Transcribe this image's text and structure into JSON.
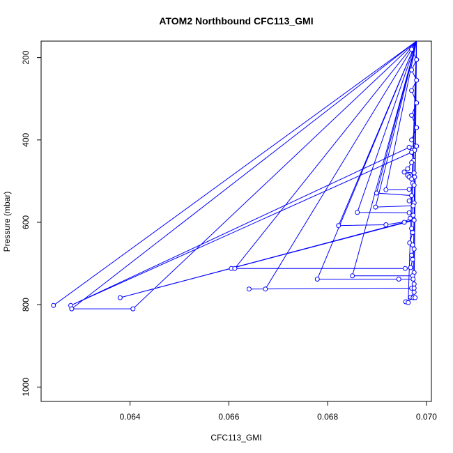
{
  "chart_data": {
    "type": "line",
    "title": "ATOM2 Northbound CFC113_GMI",
    "xlabel": "CFC113_GMI",
    "ylabel": "Pressure (mbar)",
    "xlim": [
      0.0622,
      0.0701
    ],
    "ylim": [
      1035,
      160
    ],
    "y_reversed": true,
    "x_ticks": [
      0.064,
      0.066,
      0.068,
      0.07
    ],
    "x_tick_labels": [
      "0.064",
      "0.066",
      "0.068",
      "0.070"
    ],
    "y_ticks": [
      200,
      400,
      600,
      800,
      1000
    ],
    "y_tick_labels": [
      "200",
      "400",
      "600",
      "800",
      "1000"
    ],
    "grid": false,
    "color": "#0000ff",
    "marker": "open-circle",
    "series": [
      {
        "values": [
          {
            "x": 0.0698,
            "y": 160
          },
          {
            "x": 0.0697,
            "y": 180
          },
          {
            "x": 0.0698,
            "y": 205
          },
          {
            "x": 0.0697,
            "y": 230
          },
          {
            "x": 0.0698,
            "y": 255
          },
          {
            "x": 0.0697,
            "y": 280
          },
          {
            "x": 0.0698,
            "y": 310
          },
          {
            "x": 0.0697,
            "y": 340
          },
          {
            "x": 0.0698,
            "y": 370
          },
          {
            "x": 0.0697,
            "y": 400
          },
          {
            "x": 0.0698,
            "y": 415
          },
          {
            "x": 0.0697,
            "y": 420
          },
          {
            "x": 0.06972,
            "y": 425
          },
          {
            "x": 0.06976,
            "y": 425
          },
          {
            "x": 0.06965,
            "y": 418
          },
          {
            "x": 0.0628,
            "y": 802
          },
          {
            "x": 0.0697,
            "y": 430
          },
          {
            "x": 0.06974,
            "y": 450
          },
          {
            "x": 0.0697,
            "y": 455
          },
          {
            "x": 0.06962,
            "y": 470
          },
          {
            "x": 0.06955,
            "y": 478
          },
          {
            "x": 0.06975,
            "y": 480
          },
          {
            "x": 0.06962,
            "y": 486
          },
          {
            "x": 0.06965,
            "y": 490
          },
          {
            "x": 0.06976,
            "y": 490
          },
          {
            "x": 0.0697,
            "y": 495
          },
          {
            "x": 0.06972,
            "y": 505
          },
          {
            "x": 0.06975,
            "y": 510
          },
          {
            "x": 0.06965,
            "y": 520
          },
          {
            "x": 0.06918,
            "y": 521
          },
          {
            "x": 0.0698,
            "y": 160
          },
          {
            "x": 0.06899,
            "y": 529
          },
          {
            "x": 0.0697,
            "y": 535
          },
          {
            "x": 0.06965,
            "y": 548
          },
          {
            "x": 0.06975,
            "y": 553
          },
          {
            "x": 0.06973,
            "y": 560
          },
          {
            "x": 0.06897,
            "y": 563
          },
          {
            "x": 0.0698,
            "y": 160
          },
          {
            "x": 0.0686,
            "y": 576
          },
          {
            "x": 0.06965,
            "y": 577
          },
          {
            "x": 0.06973,
            "y": 583
          },
          {
            "x": 0.06967,
            "y": 590
          },
          {
            "x": 0.06955,
            "y": 600
          },
          {
            "x": 0.0638,
            "y": 783
          },
          {
            "x": 0.06975,
            "y": 595
          },
          {
            "x": 0.06918,
            "y": 606
          },
          {
            "x": 0.06822,
            "y": 608
          },
          {
            "x": 0.0698,
            "y": 160
          },
          {
            "x": 0.0697,
            "y": 615
          },
          {
            "x": 0.06972,
            "y": 625
          },
          {
            "x": 0.06966,
            "y": 650
          },
          {
            "x": 0.06972,
            "y": 655
          },
          {
            "x": 0.06975,
            "y": 665
          },
          {
            "x": 0.0697,
            "y": 680
          },
          {
            "x": 0.06972,
            "y": 690
          },
          {
            "x": 0.06968,
            "y": 710
          },
          {
            "x": 0.06957,
            "y": 712
          },
          {
            "x": 0.06605,
            "y": 712
          },
          {
            "x": 0.06612,
            "y": 712
          },
          {
            "x": 0.0698,
            "y": 160
          },
          {
            "x": 0.06975,
            "y": 722
          },
          {
            "x": 0.06972,
            "y": 730
          },
          {
            "x": 0.0685,
            "y": 730
          },
          {
            "x": 0.0698,
            "y": 160
          },
          {
            "x": 0.06973,
            "y": 738
          },
          {
            "x": 0.06944,
            "y": 738
          },
          {
            "x": 0.06779,
            "y": 738
          },
          {
            "x": 0.0698,
            "y": 160
          },
          {
            "x": 0.06975,
            "y": 750
          },
          {
            "x": 0.0697,
            "y": 760
          },
          {
            "x": 0.06975,
            "y": 760
          },
          {
            "x": 0.06641,
            "y": 762
          },
          {
            "x": 0.06674,
            "y": 762
          },
          {
            "x": 0.0698,
            "y": 160
          },
          {
            "x": 0.06975,
            "y": 770
          },
          {
            "x": 0.06968,
            "y": 782
          },
          {
            "x": 0.06973,
            "y": 783
          },
          {
            "x": 0.06977,
            "y": 783
          },
          {
            "x": 0.06958,
            "y": 793
          },
          {
            "x": 0.06963,
            "y": 795
          },
          {
            "x": 0.0698,
            "y": 160
          },
          {
            "x": 0.06245,
            "y": 802
          },
          {
            "x": 0.0698,
            "y": 160
          },
          {
            "x": 0.06282,
            "y": 810
          },
          {
            "x": 0.06406,
            "y": 810
          },
          {
            "x": 0.0698,
            "y": 160
          }
        ]
      }
    ]
  }
}
